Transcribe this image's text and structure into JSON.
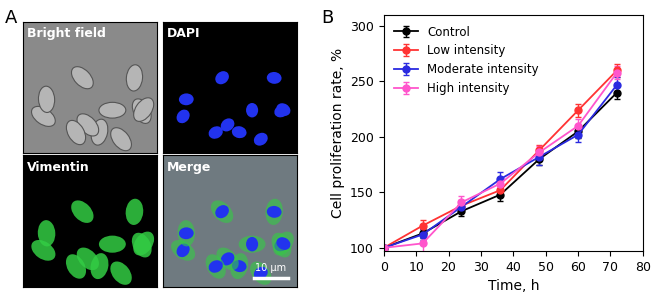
{
  "panel_labels": [
    "A",
    "B"
  ],
  "images": {
    "titles": [
      "Bright field",
      "DAPI",
      "Vimentin",
      "Merge"
    ],
    "scale_bar": "10 μm"
  },
  "chart_data": {
    "type": "line",
    "x_label": "Time, h",
    "y_label": "Cell proliferation rate, %",
    "x": [
      0,
      12,
      24,
      36,
      48,
      60,
      72
    ],
    "series": [
      {
        "name": "Control",
        "color": "#000000",
        "marker": "o",
        "values": [
          100,
          113,
          133,
          148,
          180,
          205,
          240
        ],
        "errors": [
          2,
          4,
          4,
          6,
          5,
          6,
          6
        ]
      },
      {
        "name": "Low intensity",
        "color": "#ff3333",
        "marker": "o",
        "values": [
          100,
          120,
          138,
          152,
          188,
          224,
          260
        ],
        "errors": [
          2,
          5,
          5,
          5,
          5,
          6,
          6
        ]
      },
      {
        "name": "Moderate intensity",
        "color": "#2a2ae0",
        "marker": "o",
        "values": [
          100,
          112,
          137,
          162,
          182,
          202,
          247
        ],
        "errors": [
          2,
          5,
          4,
          6,
          7,
          7,
          7
        ]
      },
      {
        "name": "High intensity",
        "color": "#ff55cc",
        "marker": "o",
        "values": [
          100,
          104,
          141,
          158,
          186,
          210,
          258
        ],
        "errors": [
          2,
          8,
          6,
          6,
          6,
          6,
          6
        ]
      }
    ],
    "xlim": [
      0,
      80
    ],
    "xticks": [
      0,
      10,
      20,
      30,
      40,
      50,
      60,
      70,
      80
    ],
    "ylim": [
      97,
      310
    ],
    "yticks": [
      100,
      150,
      200,
      250,
      300
    ],
    "legend": "upper left",
    "grid": false
  }
}
